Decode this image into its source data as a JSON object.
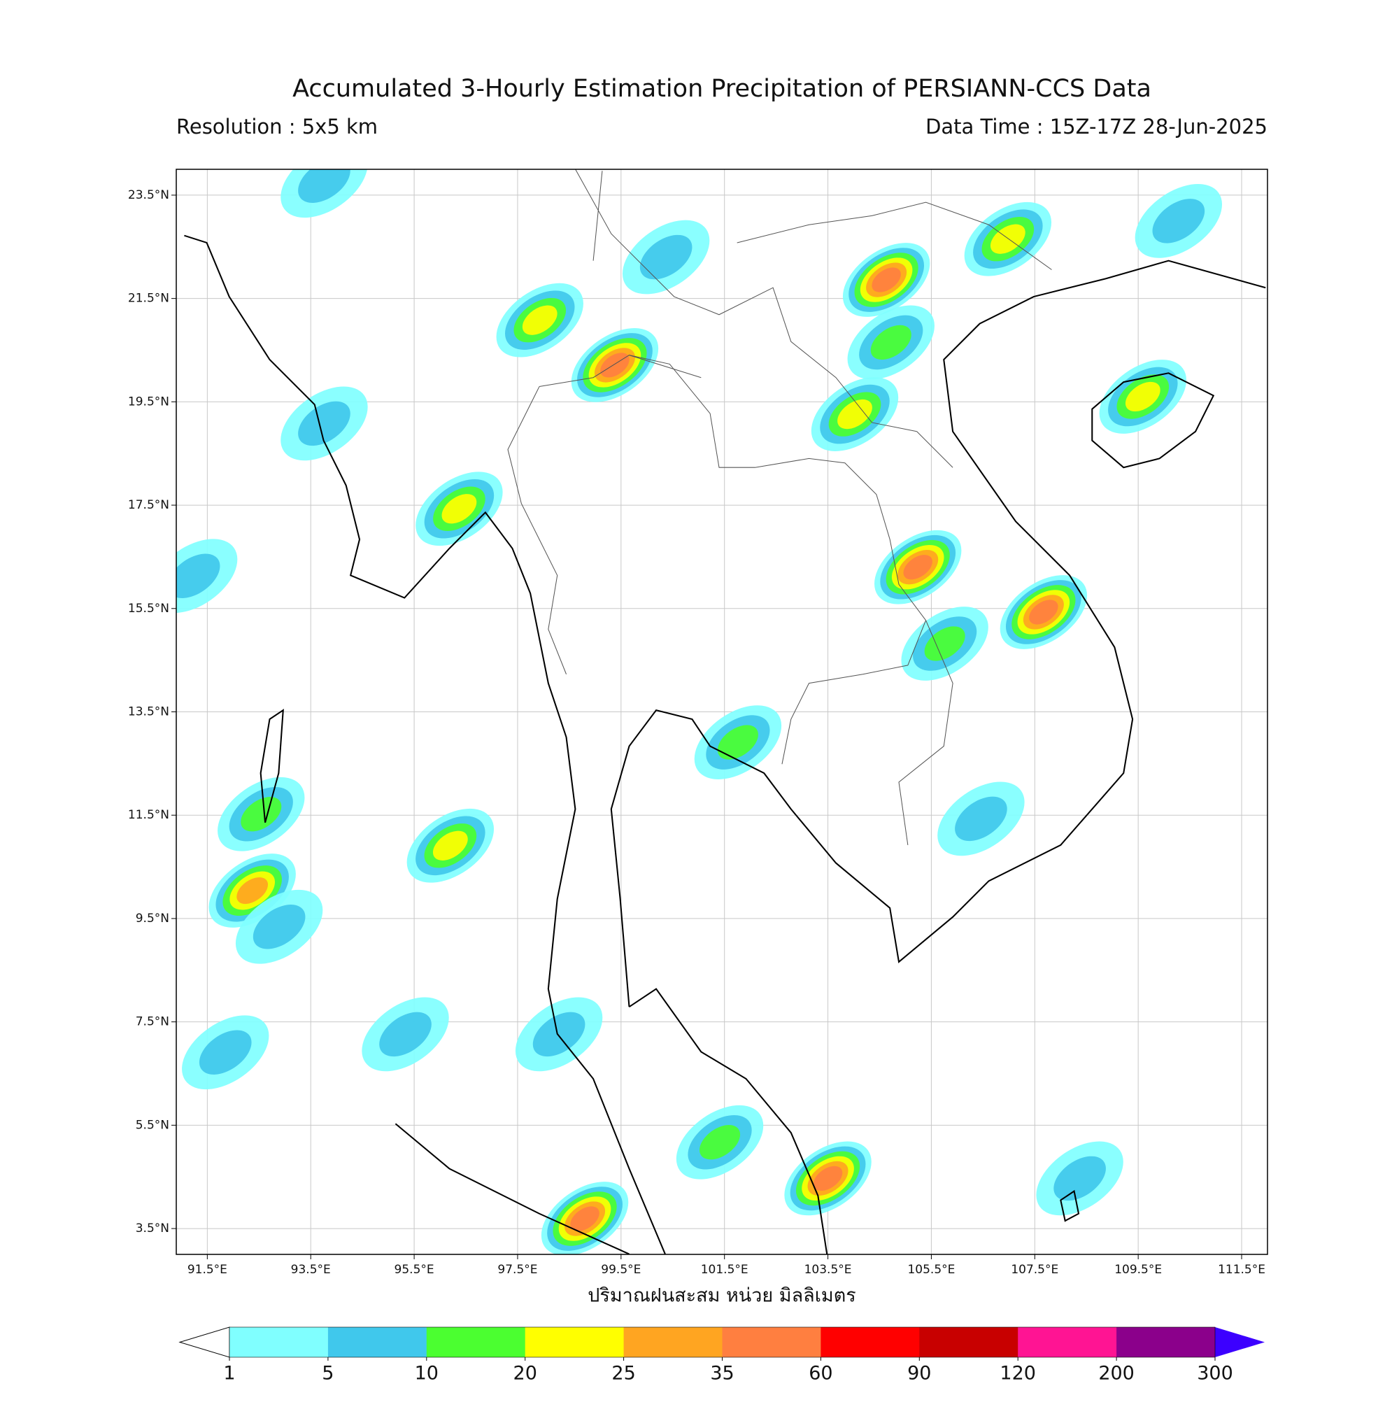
{
  "chart_data": {
    "type": "map",
    "title": "Accumulated 3-Hourly Estimation Precipitation of PERSIANN-CCS Data",
    "subtitle_left": "Resolution : 5x5 km",
    "subtitle_right": "Data Time : 15Z-17Z 28-Jun-2025",
    "x_label": "ปริมาณฝนสะสม หน่วย มิลลิเมตร",
    "xlim": [
      90.9,
      112.0
    ],
    "ylim": [
      3.0,
      24.0
    ],
    "xticks": [
      {
        "value": 91.5,
        "label": "91.5°E"
      },
      {
        "value": 93.5,
        "label": "93.5°E"
      },
      {
        "value": 95.5,
        "label": "95.5°E"
      },
      {
        "value": 97.5,
        "label": "97.5°E"
      },
      {
        "value": 99.5,
        "label": "99.5°E"
      },
      {
        "value": 101.5,
        "label": "101.5°E"
      },
      {
        "value": 103.5,
        "label": "103.5°E"
      },
      {
        "value": 105.5,
        "label": "105.5°E"
      },
      {
        "value": 107.5,
        "label": "107.5°E"
      },
      {
        "value": 109.5,
        "label": "109.5°E"
      },
      {
        "value": 111.5,
        "label": "111.5°E"
      }
    ],
    "yticks": [
      {
        "value": 3.5,
        "label": "3.5°N"
      },
      {
        "value": 5.5,
        "label": "5.5°N"
      },
      {
        "value": 7.5,
        "label": "7.5°N"
      },
      {
        "value": 9.5,
        "label": "9.5°N"
      },
      {
        "value": 11.5,
        "label": "11.5°N"
      },
      {
        "value": 13.5,
        "label": "13.5°N"
      },
      {
        "value": 15.5,
        "label": "15.5°N"
      },
      {
        "value": 17.5,
        "label": "17.5°N"
      },
      {
        "value": 19.5,
        "label": "19.5°N"
      },
      {
        "value": 21.5,
        "label": "21.5°N"
      },
      {
        "value": 23.5,
        "label": "23.5°N"
      }
    ],
    "grid": true,
    "colorbar": {
      "ticks": [
        1,
        5,
        10,
        20,
        25,
        35,
        60,
        90,
        120,
        200,
        300
      ],
      "colors": [
        "#80ffff",
        "#40c8ec",
        "#4bff30",
        "#ffff00",
        "#ffa521",
        "#ff7f40",
        "#ff0000",
        "#c80000",
        "#ff1493",
        "#8b008b"
      ],
      "under_color": "#ffffff",
      "over_color": "#3c00ff"
    },
    "rain_cells": [
      {
        "lon": 104.63,
        "lat": 21.86,
        "value": 35
      },
      {
        "lon": 104.72,
        "lat": 20.65,
        "value": 10
      },
      {
        "lon": 104.02,
        "lat": 19.26,
        "value": 20
      },
      {
        "lon": 105.24,
        "lat": 16.3,
        "value": 35
      },
      {
        "lon": 107.67,
        "lat": 15.43,
        "value": 35
      },
      {
        "lon": 109.59,
        "lat": 19.6,
        "value": 20
      },
      {
        "lon": 110.28,
        "lat": 23.0,
        "value": 5
      },
      {
        "lon": 106.98,
        "lat": 22.65,
        "value": 20
      },
      {
        "lon": 97.93,
        "lat": 21.08,
        "value": 20
      },
      {
        "lon": 99.38,
        "lat": 20.21,
        "value": 35
      },
      {
        "lon": 96.37,
        "lat": 17.43,
        "value": 20
      },
      {
        "lon": 92.37,
        "lat": 10.04,
        "value": 25
      },
      {
        "lon": 96.2,
        "lat": 10.91,
        "value": 20
      },
      {
        "lon": 92.54,
        "lat": 11.52,
        "value": 10
      },
      {
        "lon": 92.89,
        "lat": 9.34,
        "value": 5
      },
      {
        "lon": 101.41,
        "lat": 5.17,
        "value": 10
      },
      {
        "lon": 103.5,
        "lat": 4.47,
        "value": 35
      },
      {
        "lon": 98.8,
        "lat": 3.69,
        "value": 35
      },
      {
        "lon": 101.76,
        "lat": 12.91,
        "value": 10
      },
      {
        "lon": 93.76,
        "lat": 19.08,
        "value": 5
      },
      {
        "lon": 93.76,
        "lat": 23.78,
        "value": 5
      },
      {
        "lon": 100.37,
        "lat": 22.3,
        "value": 5
      },
      {
        "lon": 105.76,
        "lat": 14.82,
        "value": 10
      },
      {
        "lon": 108.37,
        "lat": 4.47,
        "value": 5
      },
      {
        "lon": 95.33,
        "lat": 7.26,
        "value": 5
      },
      {
        "lon": 98.3,
        "lat": 7.26,
        "value": 5
      },
      {
        "lon": 91.24,
        "lat": 16.13,
        "value": 5
      },
      {
        "lon": 91.85,
        "lat": 6.91,
        "value": 5
      },
      {
        "lon": 106.46,
        "lat": 11.43,
        "value": 5
      }
    ]
  }
}
